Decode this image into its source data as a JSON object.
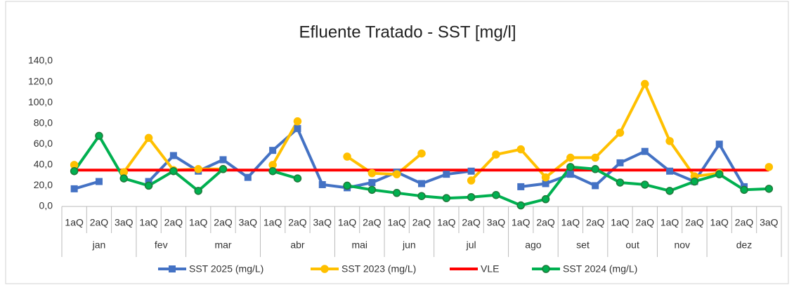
{
  "chart_data": {
    "type": "line",
    "title": "Efluente Tratado - SST [mg/l]",
    "groups": [
      {
        "name": "jan",
        "categories": [
          "1aQ",
          "2aQ",
          "3aQ"
        ]
      },
      {
        "name": "fev",
        "categories": [
          "1aQ",
          "2aQ"
        ]
      },
      {
        "name": "mar",
        "categories": [
          "1aQ",
          "2aQ",
          "3aQ"
        ]
      },
      {
        "name": "abr",
        "categories": [
          "1aQ",
          "2aQ",
          "3aQ"
        ]
      },
      {
        "name": "mai",
        "categories": [
          "1aQ",
          "2aQ"
        ]
      },
      {
        "name": "jun",
        "categories": [
          "1aQ",
          "2aQ"
        ]
      },
      {
        "name": "jul",
        "categories": [
          "1aQ",
          "2aQ",
          "3aQ"
        ]
      },
      {
        "name": "ago",
        "categories": [
          "1aQ",
          "2aQ"
        ]
      },
      {
        "name": "set",
        "categories": [
          "1aQ",
          "2aQ"
        ]
      },
      {
        "name": "out",
        "categories": [
          "1aQ",
          "2aQ"
        ]
      },
      {
        "name": "nov",
        "categories": [
          "1aQ",
          "2aQ"
        ]
      },
      {
        "name": "dez",
        "categories": [
          "1aQ",
          "2aQ",
          "3aQ"
        ]
      }
    ],
    "series": [
      {
        "name": "SST 2025 (mg/L)",
        "color": "#4472c4",
        "marker": "square",
        "values": [
          17,
          24,
          null,
          24,
          49,
          34,
          45,
          28,
          54,
          75,
          21,
          18,
          23,
          33,
          22,
          31,
          34,
          null,
          19,
          22,
          31,
          20,
          42,
          53,
          34,
          24,
          60,
          19,
          null
        ]
      },
      {
        "name": "SST 2023 (mg/L)",
        "color": "#ffc000",
        "marker": "circle",
        "values": [
          40,
          null,
          33,
          66,
          35,
          36,
          36,
          null,
          40,
          82,
          null,
          48,
          32,
          31,
          51,
          null,
          25,
          50,
          55,
          28,
          47,
          47,
          71,
          118,
          63,
          29,
          32,
          null,
          38
        ]
      },
      {
        "name": "VLE",
        "color": "#ff0000",
        "marker": "none",
        "values": [
          35,
          35,
          35,
          35,
          35,
          35,
          35,
          35,
          35,
          35,
          35,
          35,
          35,
          35,
          35,
          35,
          35,
          35,
          35,
          35,
          35,
          35,
          35,
          35,
          35,
          35,
          35,
          35,
          35
        ]
      },
      {
        "name": "SST 2024 (mg/L)",
        "color": "#00b050",
        "marker": "circle",
        "values": [
          34,
          68,
          27,
          20,
          34,
          15,
          36,
          null,
          34,
          27,
          null,
          20,
          16,
          13,
          10,
          8,
          9,
          11,
          1,
          7,
          38,
          36,
          23,
          21,
          15,
          24,
          31,
          16,
          17
        ]
      }
    ],
    "ylim": [
      0,
      140
    ],
    "yticks": [
      {
        "value": 0,
        "label": "0,0"
      },
      {
        "value": 20,
        "label": "20,0"
      },
      {
        "value": 40,
        "label": "40,0"
      },
      {
        "value": 60,
        "label": "60,0"
      },
      {
        "value": 80,
        "label": "80,0"
      },
      {
        "value": 100,
        "label": "100,0"
      },
      {
        "value": 120,
        "label": "120,0"
      },
      {
        "value": 140,
        "label": "140,0"
      }
    ],
    "grid": false,
    "legend": "bottom"
  }
}
